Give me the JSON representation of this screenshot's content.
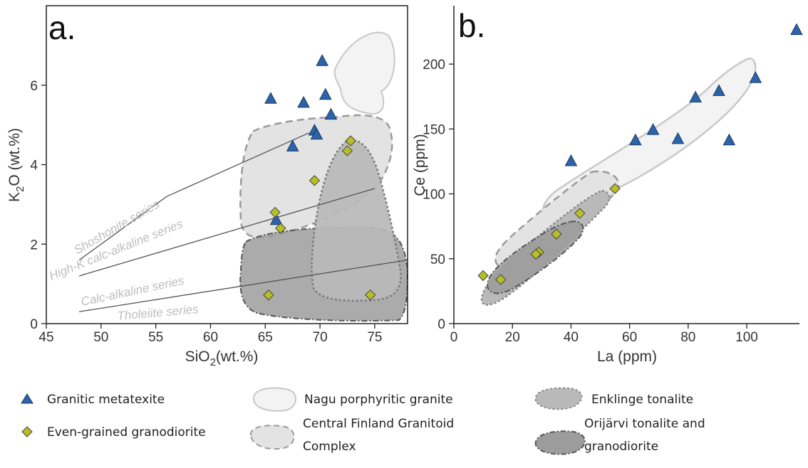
{
  "chart_data": [
    {
      "type": "scatter",
      "panel_label": "a.",
      "xlabel_main": "SiO",
      "xlabel_sub": "2",
      "xlabel_tail": "(wt.%)",
      "ylabel_main": "K",
      "ylabel_sub": "2",
      "ylabel_tail": "O (wt.%)",
      "xlim": [
        45,
        78
      ],
      "ylim": [
        0,
        8
      ],
      "xticks": [
        45,
        50,
        55,
        60,
        65,
        70,
        75
      ],
      "yticks": [
        0,
        2,
        4,
        6
      ],
      "series_labels": [
        "Shoshonite series",
        "High-K calc-alkaline series",
        "Calc-alkaline series",
        "Tholeiite series"
      ],
      "series_lines": [
        [
          [
            48,
            1.6
          ],
          [
            56,
            3.2
          ],
          [
            69,
            4.8
          ]
        ],
        [
          [
            48,
            1.2
          ],
          [
            75,
            3.4
          ]
        ],
        [
          [
            48,
            0.3
          ],
          [
            78,
            1.6
          ]
        ]
      ],
      "series": [
        {
          "name": "Granitic metatexite",
          "marker": "triangle",
          "color": "#2d63a8",
          "points": [
            [
              65.5,
              5.65
            ],
            [
              68.5,
              5.55
            ],
            [
              70.2,
              6.6
            ],
            [
              70.5,
              5.75
            ],
            [
              71,
              5.25
            ],
            [
              69.5,
              4.85
            ],
            [
              69.7,
              4.75
            ],
            [
              67.5,
              4.45
            ],
            [
              66,
              2.6
            ]
          ]
        },
        {
          "name": "Even-grained granodiorite",
          "marker": "diamond",
          "color": "#b8bf26",
          "points": [
            [
              72.8,
              4.6
            ],
            [
              72.5,
              4.35
            ],
            [
              69.5,
              3.6
            ],
            [
              65.9,
              2.8
            ],
            [
              66.4,
              2.4
            ],
            [
              65.3,
              0.72
            ],
            [
              74.6,
              0.72
            ]
          ]
        }
      ]
    },
    {
      "type": "scatter",
      "panel_label": "b.",
      "xlabel": "La (ppm)",
      "ylabel": "Ce (ppm)",
      "xlim": [
        0,
        118
      ],
      "ylim": [
        0,
        245
      ],
      "xticks": [
        0,
        20,
        40,
        60,
        80,
        100
      ],
      "yticks": [
        0,
        50,
        100,
        150,
        200
      ],
      "series": [
        {
          "name": "Granitic metatexite",
          "marker": "triangle",
          "color": "#2d63a8",
          "points": [
            [
              117,
              226
            ],
            [
              103,
              189
            ],
            [
              90.5,
              179
            ],
            [
              82.5,
              174
            ],
            [
              68,
              149
            ],
            [
              62,
              141
            ],
            [
              76.5,
              142
            ],
            [
              94,
              141
            ],
            [
              40,
              125
            ]
          ]
        },
        {
          "name": "Even-grained granodiorite",
          "marker": "diamond",
          "color": "#b8bf26",
          "points": [
            [
              55,
              104
            ],
            [
              43,
              85
            ],
            [
              35,
              69
            ],
            [
              29,
              55
            ],
            [
              28,
              53.5
            ],
            [
              10,
              37
            ],
            [
              16,
              34
            ]
          ]
        }
      ]
    }
  ],
  "legend": {
    "metatexite": "Granitic metatexite",
    "granodiorite": "Even-grained granodiorite",
    "nagu": "Nagu porphyritic granite",
    "central_1": "Central Finland Granitoid",
    "central_2": "Complex",
    "enklinge": "Enklinge tonalite",
    "orijarvi_1": "Orijärvi tonalite and",
    "orijarvi_2": "granodiorite"
  },
  "colors": {
    "metatexite": "#2d63a8",
    "granodiorite": "#b8bf26",
    "nagu_fill": "#f3f3f3",
    "central_fill": "#e3e3e3",
    "enklinge_fill": "#b9b9b9",
    "orijarvi_fill": "#9c9c9c"
  }
}
